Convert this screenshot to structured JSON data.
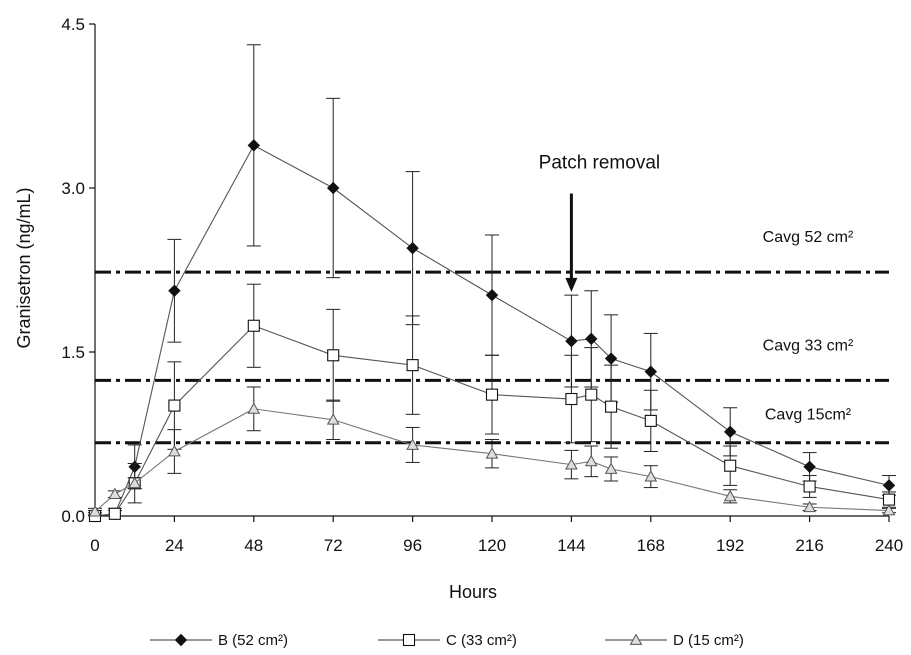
{
  "chart_data": {
    "type": "line",
    "title": "",
    "xlabel": "Hours",
    "ylabel": "Granisetron (ng/mL)",
    "xlim": [
      0,
      240
    ],
    "ylim": [
      0,
      4.5
    ],
    "x_ticks": [
      "0",
      "24",
      "48",
      "72",
      "96",
      "120",
      "144",
      "168",
      "192",
      "216",
      "240"
    ],
    "y_ticks": [
      "0.0",
      "1.5",
      "3.0",
      "4.5"
    ],
    "grid": false,
    "legend_position": "bottom",
    "series": [
      {
        "name": "B (52 cm²)",
        "marker": "diamond",
        "x": [
          0,
          6,
          12,
          24,
          48,
          72,
          96,
          120,
          144,
          150,
          156,
          168,
          192,
          216,
          240
        ],
        "y": [
          0.0,
          0.02,
          0.45,
          2.06,
          3.39,
          3.0,
          2.45,
          2.02,
          1.6,
          1.62,
          1.44,
          1.32,
          0.77,
          0.45,
          0.28
        ],
        "err": [
          0.05,
          0.05,
          0.2,
          0.47,
          0.92,
          0.82,
          0.7,
          0.55,
          0.42,
          0.44,
          0.4,
          0.35,
          0.22,
          0.13,
          0.09
        ]
      },
      {
        "name": "C (33 cm²)",
        "marker": "square",
        "x": [
          0,
          6,
          12,
          24,
          48,
          72,
          96,
          120,
          144,
          150,
          156,
          168,
          192,
          216,
          240
        ],
        "y": [
          0.0,
          0.02,
          0.3,
          1.01,
          1.74,
          1.47,
          1.38,
          1.11,
          1.07,
          1.11,
          1.0,
          0.87,
          0.46,
          0.27,
          0.15
        ],
        "err": [
          0.03,
          0.03,
          0.18,
          0.4,
          0.38,
          0.42,
          0.45,
          0.36,
          0.4,
          0.43,
          0.38,
          0.28,
          0.18,
          0.1,
          0.07
        ]
      },
      {
        "name": "D (15 cm²)",
        "marker": "triangle",
        "x": [
          0,
          6,
          12,
          24,
          48,
          72,
          96,
          120,
          144,
          150,
          156,
          168,
          192,
          216,
          240
        ],
        "y": [
          0.04,
          0.2,
          0.3,
          0.59,
          0.98,
          0.88,
          0.65,
          0.57,
          0.47,
          0.5,
          0.43,
          0.36,
          0.18,
          0.08,
          0.05
        ],
        "err": [
          0.03,
          0.03,
          0.05,
          0.2,
          0.2,
          0.18,
          0.16,
          0.13,
          0.13,
          0.14,
          0.11,
          0.1,
          0.06,
          0.03,
          0.02
        ]
      }
    ],
    "reference_lines": [
      {
        "label": "Cavg 52 cm²",
        "y": 2.23
      },
      {
        "label": "Cavg 33 cm²",
        "y": 1.24
      },
      {
        "label": "Cavg 15cm²",
        "y": 0.67
      }
    ],
    "annotations": [
      {
        "text": "Patch removal",
        "x": 144,
        "arrow_from_y": 2.95,
        "arrow_to_y": 2.05
      }
    ]
  }
}
